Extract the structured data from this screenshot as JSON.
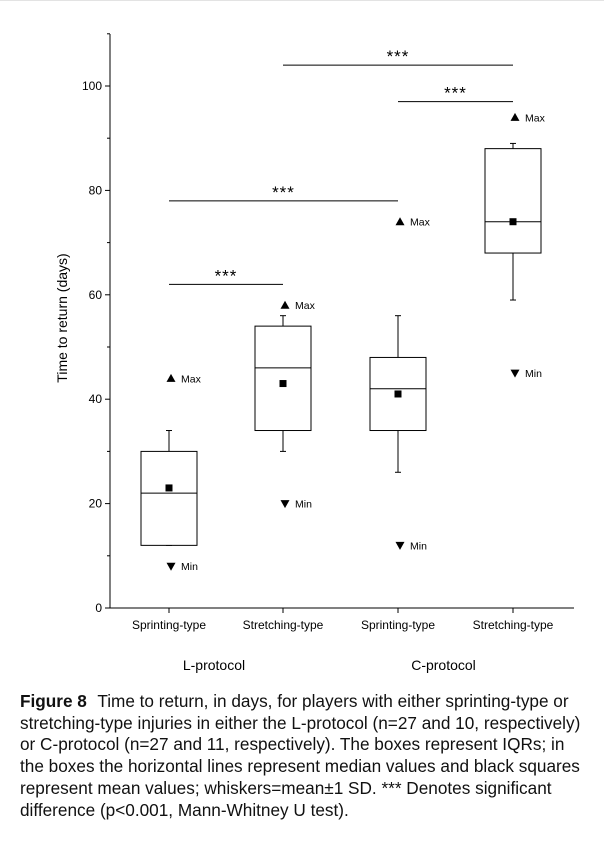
{
  "chart_data": {
    "type": "box",
    "ylabel": "Time to return (days)",
    "ylim": [
      0,
      110
    ],
    "yticks": [
      0,
      20,
      40,
      60,
      80,
      100
    ],
    "categories": [
      "Sprinting-type",
      "Stretching-type",
      "Sprinting-type",
      "Stretching-type"
    ],
    "groups": [
      {
        "label": "L-protocol",
        "categories": [
          0,
          1
        ]
      },
      {
        "label": "C-protocol",
        "categories": [
          2,
          3
        ]
      }
    ],
    "boxes": [
      {
        "q1": 12,
        "median": 22,
        "q3": 30,
        "mean": 23,
        "whisker_low": 12,
        "whisker_high": 34,
        "min": 8,
        "max": 44
      },
      {
        "q1": 34,
        "median": 46,
        "q3": 54,
        "mean": 43,
        "whisker_low": 30,
        "whisker_high": 56,
        "min": 20,
        "max": 58
      },
      {
        "q1": 34,
        "median": 42,
        "q3": 48,
        "mean": 41,
        "whisker_low": 26,
        "whisker_high": 56,
        "min": 12,
        "max": 74
      },
      {
        "q1": 68,
        "median": 74,
        "q3": 88,
        "mean": 74,
        "whisker_low": 59,
        "whisker_high": 89,
        "min": 45,
        "max": 94
      }
    ],
    "max_label": "Max",
    "min_label": "Min",
    "significance": [
      {
        "from": 0,
        "to": 1,
        "y": 62,
        "label": "***"
      },
      {
        "from": 0,
        "to": 2,
        "y": 78,
        "label": "***"
      },
      {
        "from": 2,
        "to": 3,
        "y": 97,
        "label": "***"
      },
      {
        "from": 1,
        "to": 3,
        "y": 104,
        "label": "***"
      }
    ]
  },
  "caption": {
    "figure_label": "Figure 8",
    "text": "Time to return, in days, for players with either sprinting-type or stretching-type injuries in either the L-protocol (n=27 and 10, respectively) or C-protocol (n=27 and 11, respectively). The boxes represent IQRs; in the boxes the horizontal lines represent median values and black squares represent mean values; whiskers=mean±1 SD. *** Denotes significant difference (p<0.001, Mann-Whitney U test)."
  }
}
